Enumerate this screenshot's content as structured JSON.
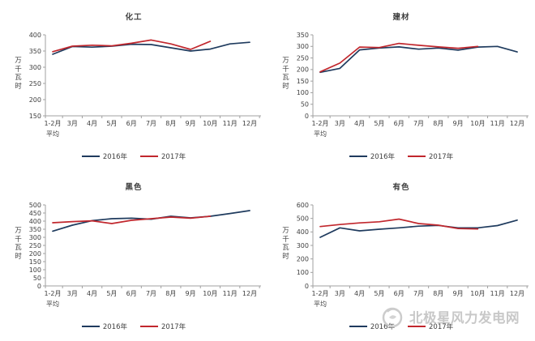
{
  "page": {
    "background": "#ffffff"
  },
  "colors": {
    "series_2016": "#1f3b5e",
    "series_2017": "#c1272d",
    "axis": "#a0a0a0",
    "tick_text": "#404040",
    "watermark": "#c8c8c8"
  },
  "watermark": {
    "text": "北极星风力发电网",
    "logo": "circle-swirl-logo"
  },
  "chart_data": [
    {
      "type": "line",
      "title": "化工",
      "ylabel": "万千瓦时",
      "ylim": [
        150,
        400
      ],
      "ystep": 50,
      "grid": false,
      "legend_position": "bottom",
      "categories": [
        "1-2月\n平均",
        "3月",
        "4月",
        "5月",
        "6月",
        "7月",
        "8月",
        "9月",
        "10月",
        "11月",
        "12月"
      ],
      "series": [
        {
          "name": "2016年",
          "color": "#1f3b5e",
          "values": [
            340,
            364,
            362,
            365,
            371,
            370,
            360,
            350,
            356,
            372,
            377
          ]
        },
        {
          "name": "2017年",
          "color": "#c1272d",
          "values": [
            348,
            365,
            368,
            366,
            374,
            384,
            372,
            355,
            380
          ]
        }
      ]
    },
    {
      "type": "line",
      "title": "建材",
      "ylabel": "万千瓦时",
      "ylim": [
        0,
        350
      ],
      "ystep": 50,
      "grid": false,
      "legend_position": "bottom",
      "categories": [
        "1-2月\n平均",
        "3月",
        "4月",
        "5月",
        "6月",
        "7月",
        "8月",
        "9月",
        "10月",
        "11月",
        "12月"
      ],
      "series": [
        {
          "name": "2016年",
          "color": "#1f3b5e",
          "values": [
            188,
            205,
            285,
            293,
            298,
            288,
            293,
            284,
            297,
            300,
            276
          ]
        },
        {
          "name": "2017年",
          "color": "#c1272d",
          "values": [
            190,
            228,
            297,
            295,
            313,
            305,
            298,
            292,
            300
          ]
        }
      ]
    },
    {
      "type": "line",
      "title": "黑色",
      "ylabel": "万千瓦时",
      "ylim": [
        0,
        500
      ],
      "ystep": 50,
      "grid": false,
      "legend_position": "bottom",
      "categories": [
        "1-2月\n平均",
        "3月",
        "4月",
        "5月",
        "6月",
        "7月",
        "8月",
        "9月",
        "10月",
        "11月",
        "12月"
      ],
      "series": [
        {
          "name": "2016年",
          "color": "#1f3b5e",
          "values": [
            338,
            375,
            403,
            415,
            418,
            412,
            430,
            420,
            430,
            447,
            465
          ]
        },
        {
          "name": "2017年",
          "color": "#c1272d",
          "values": [
            390,
            397,
            402,
            385,
            405,
            415,
            425,
            418,
            430
          ]
        }
      ]
    },
    {
      "type": "line",
      "title": "有色",
      "ylabel": "万千瓦时",
      "ylim": [
        0,
        600
      ],
      "ystep": 100,
      "grid": false,
      "legend_position": "bottom",
      "categories": [
        "1-2月\n平均",
        "3月",
        "4月",
        "5月",
        "6月",
        "7月",
        "8月",
        "9月",
        "10月",
        "11月",
        "12月"
      ],
      "series": [
        {
          "name": "2016年",
          "color": "#1f3b5e",
          "values": [
            360,
            430,
            408,
            420,
            430,
            443,
            448,
            430,
            430,
            447,
            487
          ]
        },
        {
          "name": "2017年",
          "color": "#c1272d",
          "values": [
            440,
            455,
            467,
            475,
            495,
            462,
            450,
            425,
            422
          ]
        }
      ]
    }
  ]
}
